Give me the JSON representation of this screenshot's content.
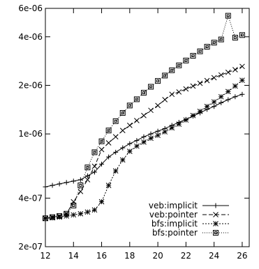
{
  "chart_data": {
    "type": "line",
    "title": "",
    "xlabel": "",
    "ylabel": "",
    "x_range": [
      12,
      26.5
    ],
    "y_range": [
      2e-07,
      6e-06
    ],
    "y_scale": "log",
    "grid": false,
    "legend_position": "bottom-right",
    "x_ticks": [
      {
        "value": 12,
        "label": "12"
      },
      {
        "value": 14,
        "label": "14"
      },
      {
        "value": 16,
        "label": "16"
      },
      {
        "value": 18,
        "label": "18"
      },
      {
        "value": 20,
        "label": "20"
      },
      {
        "value": 22,
        "label": "22"
      },
      {
        "value": 24,
        "label": "24"
      },
      {
        "value": 26,
        "label": "26"
      }
    ],
    "y_ticks": [
      {
        "value": 2e-07,
        "label": "2e-07"
      },
      {
        "value": 4e-07,
        "label": "4e-07"
      },
      {
        "value": 1e-06,
        "label": "1e-06"
      },
      {
        "value": 2e-06,
        "label": "2e-06"
      },
      {
        "value": 4e-06,
        "label": "4e-06"
      },
      {
        "value": 6e-06,
        "label": "6e-06"
      }
    ],
    "series": [
      {
        "name": "veb:implicit",
        "marker": "plus",
        "dash": "",
        "x": [
          12,
          12.5,
          13,
          13.5,
          14,
          14.5,
          15,
          15.5,
          16,
          16.5,
          17,
          17.5,
          18,
          18.5,
          19,
          19.5,
          20,
          20.5,
          21,
          21.5,
          22,
          22.5,
          23,
          23.5,
          24,
          24.5,
          25,
          25.5,
          26
        ],
        "y": [
          4.7e-07,
          4.8e-07,
          4.9e-07,
          5e-07,
          5.1e-07,
          5.2e-07,
          5.5e-07,
          5.8e-07,
          6.5e-07,
          7.2e-07,
          7.7e-07,
          8.2e-07,
          8.7e-07,
          9.1e-07,
          9.6e-07,
          1e-06,
          1.04e-06,
          1.08e-06,
          1.13e-06,
          1.18e-06,
          1.23e-06,
          1.29e-06,
          1.35e-06,
          1.42e-06,
          1.48e-06,
          1.56e-06,
          1.63e-06,
          1.7e-06,
          1.76e-06
        ]
      },
      {
        "name": "veb:pointer",
        "marker": "cross",
        "dash": "6,3",
        "x": [
          12,
          12.5,
          13,
          13.5,
          14,
          14.5,
          15,
          15.5,
          16,
          16.5,
          17,
          17.5,
          18,
          18.5,
          19,
          19.5,
          20,
          20.5,
          21,
          21.5,
          22,
          22.5,
          23,
          23.5,
          24,
          24.5,
          25,
          25.5,
          26
        ],
        "y": [
          3e-07,
          3.05e-07,
          3.1e-07,
          3.2e-07,
          3.8e-07,
          4.4e-07,
          5.2e-07,
          6.3e-07,
          8e-07,
          8.8e-07,
          9.6e-07,
          1.05e-06,
          1.13e-06,
          1.21e-06,
          1.3e-06,
          1.4e-06,
          1.5e-06,
          1.63e-06,
          1.76e-06,
          1.82e-06,
          1.9e-06,
          1.98e-06,
          2.06e-06,
          2.14e-06,
          2.23e-06,
          2.32e-06,
          2.41e-06,
          2.5e-06,
          2.62e-06
        ]
      },
      {
        "name": "bfs:implicit",
        "marker": "star",
        "dash": "2,2",
        "x": [
          12,
          12.5,
          13,
          13.5,
          14,
          14.5,
          15,
          15.5,
          16,
          16.5,
          17,
          17.5,
          18,
          18.5,
          19,
          19.5,
          20,
          20.5,
          21,
          21.5,
          22,
          22.5,
          23,
          23.5,
          24,
          24.5,
          25,
          25.5,
          26
        ],
        "y": [
          3e-07,
          3.02e-07,
          3.05e-07,
          3.1e-07,
          3.15e-07,
          3.2e-07,
          3.28e-07,
          3.38e-07,
          3.8e-07,
          4.8e-07,
          5.9e-07,
          6.9e-07,
          7.8e-07,
          8.4e-07,
          8.9e-07,
          9.4e-07,
          9.8e-07,
          1.03e-06,
          1.09e-06,
          1.15e-06,
          1.22e-06,
          1.3e-06,
          1.38e-06,
          1.48e-06,
          1.58e-06,
          1.7e-06,
          1.83e-06,
          1.98e-06,
          2.15e-06
        ]
      },
      {
        "name": "bfs:pointer",
        "marker": "box",
        "dash": "1,2",
        "x": [
          12,
          12.5,
          13,
          13.5,
          14,
          14.5,
          15,
          15.5,
          16,
          16.5,
          17,
          17.5,
          18,
          18.5,
          19,
          19.5,
          20,
          20.5,
          21,
          21.5,
          22,
          22.5,
          23,
          23.5,
          24,
          24.5,
          25,
          25.5,
          26
        ],
        "y": [
          3e-07,
          3.05e-07,
          3.1e-07,
          3.2e-07,
          3.6e-07,
          4.8e-07,
          6.2e-07,
          7.7e-07,
          9e-07,
          1.05e-06,
          1.2e-06,
          1.35e-06,
          1.5e-06,
          1.64e-06,
          1.8e-06,
          1.96e-06,
          2.13e-06,
          2.3e-06,
          2.48e-06,
          2.66e-06,
          2.85e-06,
          3.05e-06,
          3.25e-06,
          3.47e-06,
          3.68e-06,
          3.85e-06,
          5.4e-06,
          3.95e-06,
          4.1e-06
        ]
      }
    ]
  }
}
